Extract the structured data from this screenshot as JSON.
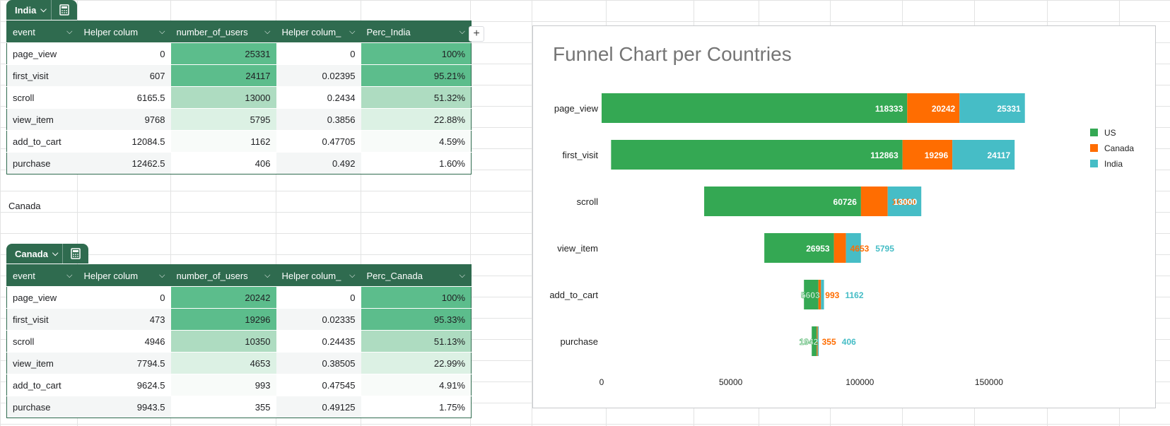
{
  "sheet": {
    "india_tab": "India",
    "canada_tab": "Canada",
    "canada_label": "Canada",
    "headers": [
      "event",
      "Helper colum",
      "number_of_users",
      "Helper colum_",
      "Perc_India"
    ],
    "headers_canada": [
      "event",
      "Helper colum",
      "number_of_users",
      "Helper colum_",
      "Perc_Canada"
    ],
    "india_rows": [
      {
        "event": "page_view",
        "helper1": "0",
        "users": "25331",
        "helper2": "0",
        "perc": "100%"
      },
      {
        "event": "first_visit",
        "helper1": "607",
        "users": "24117",
        "helper2": "0.02395",
        "perc": "95.21%"
      },
      {
        "event": "scroll",
        "helper1": "6165.5",
        "users": "13000",
        "helper2": "0.2434",
        "perc": "51.32%"
      },
      {
        "event": "view_item",
        "helper1": "9768",
        "users": "5795",
        "helper2": "0.3856",
        "perc": "22.88%"
      },
      {
        "event": "add_to_cart",
        "helper1": "12084.5",
        "users": "1162",
        "helper2": "0.47705",
        "perc": "4.59%"
      },
      {
        "event": "purchase",
        "helper1": "12462.5",
        "users": "406",
        "helper2": "0.492",
        "perc": "1.60%"
      }
    ],
    "canada_rows": [
      {
        "event": "page_view",
        "helper1": "0",
        "users": "20242",
        "helper2": "0",
        "perc": "100%"
      },
      {
        "event": "first_visit",
        "helper1": "473",
        "users": "19296",
        "helper2": "0.02335",
        "perc": "95.33%"
      },
      {
        "event": "scroll",
        "helper1": "4946",
        "users": "10350",
        "helper2": "0.24435",
        "perc": "51.13%"
      },
      {
        "event": "view_item",
        "helper1": "7794.5",
        "users": "4653",
        "helper2": "0.38505",
        "perc": "22.99%"
      },
      {
        "event": "add_to_cart",
        "helper1": "9624.5",
        "users": "993",
        "helper2": "0.47545",
        "perc": "4.91%"
      },
      {
        "event": "purchase",
        "helper1": "9943.5",
        "users": "355",
        "helper2": "0.49125",
        "perc": "1.75%"
      }
    ],
    "perc_colors": {
      "100": "#5cbd8c",
      "95": "#5cbd8c",
      "51": "#aedcc1",
      "22": "#dcf1e4",
      "4": "#f8fbf9",
      "1": "#f8fbf9"
    },
    "users_colors_india": [
      "#5cbd8c",
      "#5cbd8c",
      "#aedcc1",
      "#dcf1e4",
      "#f8fbf9",
      "#ffffff"
    ]
  },
  "chart_data": {
    "type": "bar",
    "title": "Funnel Chart per Countries",
    "categories": [
      "page_view",
      "first_visit",
      "scroll",
      "view_item",
      "add_to_cart",
      "purchase"
    ],
    "series": [
      {
        "name": "US",
        "color": "#34a853",
        "values": [
          118333,
          112863,
          60726,
          26953,
          5603,
          1942
        ]
      },
      {
        "name": "Canada",
        "color": "#ff6d01",
        "values": [
          20242,
          19296,
          10350,
          4653,
          993,
          355
        ]
      },
      {
        "name": "India",
        "color": "#46bdc6",
        "values": [
          25331,
          24117,
          13000,
          5795,
          1162,
          406
        ]
      }
    ],
    "xticks": [
      "0",
      "50000",
      "100000",
      "150000"
    ],
    "xlim": [
      0,
      170000
    ],
    "stacked": true,
    "funnel_offsets": [
      0,
      3658,
      39712,
      63006,
      78350,
      81360
    ],
    "legend_position": "right"
  }
}
